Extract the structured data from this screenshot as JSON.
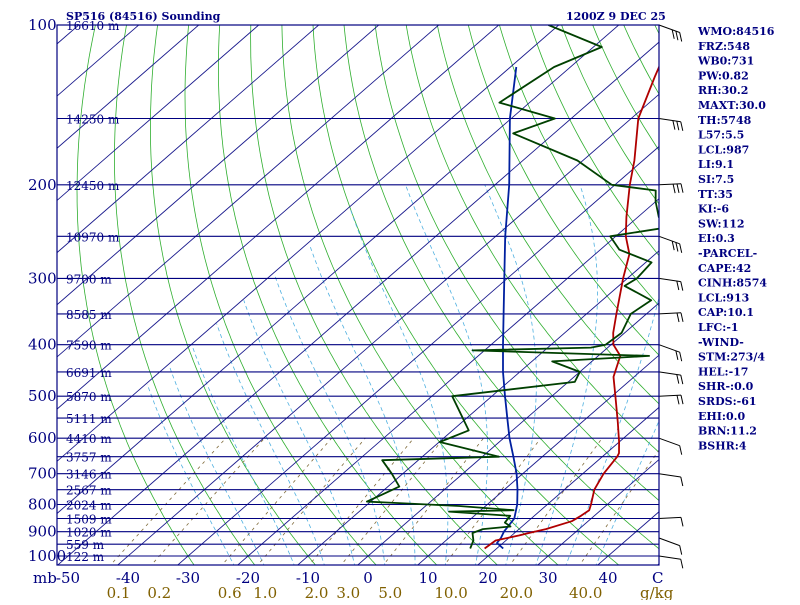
{
  "chart_data": {
    "type": "line",
    "title": "SP516 (84516) Sounding",
    "valid_time": "1200Z  9 DEC 25",
    "y_axis": {
      "unit": "mb",
      "scale": "log",
      "ticks": [
        100,
        200,
        300,
        400,
        500,
        600,
        700,
        800,
        900,
        1000
      ]
    },
    "x_axis": {
      "unit": "C",
      "ticks": [
        -50,
        -40,
        -30,
        -20,
        -10,
        0,
        10,
        20,
        30,
        40
      ]
    },
    "mixing_ratio_axis": {
      "unit": "g/kg",
      "ticks": [
        "0.1",
        "0.2",
        "0.6",
        "1.0",
        "2.0",
        "3.0",
        "5.0",
        "10.0",
        "20.0",
        "40.0"
      ]
    },
    "height_labels": [
      {
        "p": 100,
        "label": "16610 m"
      },
      {
        "p": 150,
        "label": "14250 m"
      },
      {
        "p": 200,
        "label": "12450 m"
      },
      {
        "p": 250,
        "label": "10970 m"
      },
      {
        "p": 300,
        "label": "9700 m"
      },
      {
        "p": 350,
        "label": "8585 m"
      },
      {
        "p": 400,
        "label": "7590 m"
      },
      {
        "p": 450,
        "label": "6691 m"
      },
      {
        "p": 500,
        "label": "5870 m"
      },
      {
        "p": 550,
        "label": "5111 m"
      },
      {
        "p": 600,
        "label": "4410 m"
      },
      {
        "p": 650,
        "label": "3757 m"
      },
      {
        "p": 700,
        "label": "3146 m"
      },
      {
        "p": 750,
        "label": "2567 m"
      },
      {
        "p": 800,
        "label": "2024 m"
      },
      {
        "p": 850,
        "label": "1509 m"
      },
      {
        "p": 900,
        "label": "1020 m"
      },
      {
        "p": 950,
        "label": "559 m"
      },
      {
        "p": 1000,
        "label": "122 m"
      }
    ],
    "series": [
      {
        "points": [
          [
            968,
            21.1
          ],
          [
            945,
            19.0
          ],
          [
            925,
            18.7
          ],
          [
            900,
            18.0
          ],
          [
            850,
            17.2
          ],
          [
            800,
            15.0
          ],
          [
            750,
            12.2
          ],
          [
            700,
            9.0
          ],
          [
            650,
            5.2
          ],
          [
            600,
            1.0
          ],
          [
            550,
            -3.2
          ],
          [
            500,
            -7.8
          ],
          [
            450,
            -12.8
          ],
          [
            400,
            -18.0
          ],
          [
            350,
            -23.8
          ],
          [
            300,
            -30.5
          ],
          [
            250,
            -38.4
          ],
          [
            200,
            -47.6
          ],
          [
            150,
            -60.2
          ],
          [
            120,
            -69.0
          ]
        ]
      },
      {
        "points": [
          [
            968,
            18.0
          ],
          [
            935,
            18.3
          ],
          [
            915,
            21.2
          ],
          [
            905,
            22.4
          ],
          [
            890,
            24.5
          ],
          [
            860,
            27.3
          ],
          [
            840,
            27.8
          ],
          [
            820,
            28.1
          ],
          [
            800,
            27.3
          ],
          [
            750,
            25.0
          ],
          [
            700,
            23.5
          ],
          [
            650,
            22.5
          ],
          [
            640,
            22.1
          ],
          [
            610,
            20.0
          ],
          [
            560,
            16.0
          ],
          [
            500,
            10.6
          ],
          [
            460,
            6.6
          ],
          [
            420,
            3.7
          ],
          [
            400,
            0.4
          ],
          [
            380,
            -1.9
          ],
          [
            350,
            -5.0
          ],
          [
            300,
            -10.7
          ],
          [
            270,
            -14.3
          ],
          [
            250,
            -18.3
          ],
          [
            230,
            -21.9
          ],
          [
            200,
            -27.5
          ],
          [
            180,
            -31.4
          ],
          [
            150,
            -38.8
          ],
          [
            125,
            -44.1
          ],
          [
            110,
            -47.6
          ],
          [
            100,
            -50.5
          ]
        ]
      },
      {
        "points": [
          [
            968,
            15.6
          ],
          [
            935,
            14.6
          ],
          [
            905,
            13.0
          ],
          [
            890,
            14.0
          ],
          [
            880,
            18.1
          ],
          [
            865,
            16.4
          ],
          [
            840,
            16.0
          ],
          [
            825,
            5.0
          ],
          [
            820,
            15.5
          ],
          [
            805,
            5.6
          ],
          [
            790,
            -10.6
          ],
          [
            740,
            -8.1
          ],
          [
            700,
            -11.8
          ],
          [
            660,
            -16.0
          ],
          [
            650,
            2.8
          ],
          [
            610,
            -9.9
          ],
          [
            580,
            -7.3
          ],
          [
            500,
            -16.6
          ],
          [
            470,
            1.1
          ],
          [
            450,
            0.0
          ],
          [
            430,
            -6.6
          ],
          [
            420,
            8.5
          ],
          [
            410,
            -22.0
          ],
          [
            405,
            -2.8
          ],
          [
            400,
            -0.9
          ],
          [
            380,
            -0.5
          ],
          [
            350,
            -2.6
          ],
          [
            330,
            -1.8
          ],
          [
            310,
            -9.0
          ],
          [
            300,
            -8.4
          ],
          [
            280,
            -9.0
          ],
          [
            265,
            -16.8
          ],
          [
            250,
            -20.9
          ],
          [
            240,
            -12.7
          ],
          [
            230,
            -16.5
          ],
          [
            215,
            -20.0
          ],
          [
            205,
            -22.1
          ],
          [
            200,
            -30.5
          ],
          [
            180,
            -40.9
          ],
          [
            160,
            -56.8
          ],
          [
            150,
            -52.7
          ],
          [
            140,
            -65.0
          ],
          [
            120,
            -62.7
          ],
          [
            110,
            -58.6
          ],
          [
            100,
            -71.7
          ]
        ]
      }
    ],
    "wind_barbs_right_edge": true,
    "indices_panel": [
      "WMO:84516",
      "FRZ:548",
      "WB0:731",
      "PW:0.82",
      "RH:30.2",
      "MAXT:30.0",
      "TH:5748",
      "L57:5.5",
      "LCL:987",
      "LI:9.1",
      "SI:7.5",
      "TT:35",
      "KI:-6",
      "SW:112",
      "EI:0.3",
      "-PARCEL-",
      "CAPE:42",
      "CINH:8574",
      "LCL:913",
      "CAP:10.1",
      "LFC:-1",
      "-WIND-",
      "STM:273/4",
      "HEL:-17",
      "SHR-:0.0",
      "SRDS:-61",
      "EHI:0.0",
      "BRN:11.2",
      "BSHR:4"
    ],
    "colors": {
      "frame": "#000080",
      "isobar": "#000080",
      "isotherm": "#1a1a8c",
      "dry_adiabat": "#2fae2f",
      "moist_adiabat": "#4fb0e0",
      "mixing_ratio": "#7f6a3a",
      "temperature": "#b00000",
      "dewpoint": "#004000",
      "parcel": "#0020a0"
    }
  }
}
